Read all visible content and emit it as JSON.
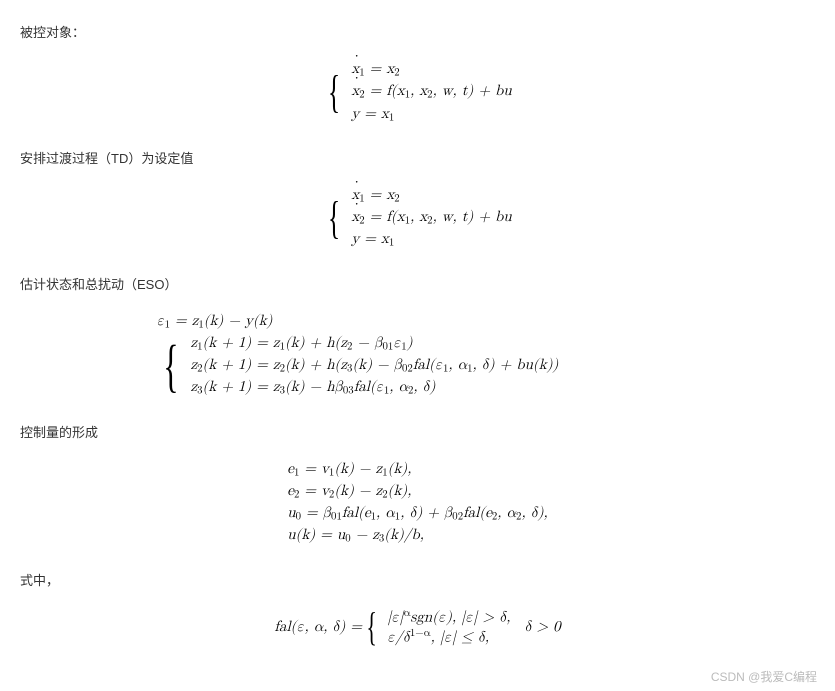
{
  "sections": {
    "s1": "被控对象：",
    "s2": "安排过渡过程（TD）为设定值",
    "s3": "估计状态和总扰动（ESO）",
    "s4": "控制量的形成",
    "s5": "式中，",
    "watermark": "CSDN @我爱C编程"
  },
  "eq1": {
    "l1a": "x",
    "l1b": "1",
    "l1c": " = x",
    "l1d": "2",
    "l2a": "x",
    "l2b": "2",
    "l2c": " = f(x",
    "l2d": "1",
    "l2e": ", x",
    "l2f": "2",
    "l2g": ", w, t) + bu",
    "l3a": "y = x",
    "l3b": "1"
  },
  "eq3": {
    "pre": "ε",
    "pre_s": "1",
    "pre2": " = z",
    "pre2_s": "1",
    "pre3": "(k) − y(k)",
    "l1": "z",
    "l1s": "1",
    "l1b": "(k + 1) = z",
    "l1c": "1",
    "l1d": "(k) + h(z",
    "l1e": "2",
    "l1f": " − β",
    "l1g": "01",
    "l1h": "ε",
    "l1i": "1",
    "l1j": ")",
    "l2": "z",
    "l2s": "2",
    "l2b": "(k + 1) = z",
    "l2c": "2",
    "l2d": "(k) + h(z",
    "l2e": "3",
    "l2f": "(k) − β",
    "l2g": "02",
    "l2h": "fal(ε",
    "l2i": "1",
    "l2j": ", α",
    "l2k": "1",
    "l2l": ", δ) + bu(k))",
    "l3": "z",
    "l3s": "3",
    "l3b": "(k + 1) = z",
    "l3c": "3",
    "l3d": "(k) − hβ",
    "l3e": "03",
    "l3f": "fal(ε",
    "l3g": "1",
    "l3h": ", α",
    "l3i": "2",
    "l3j": ", δ)"
  },
  "eq4": {
    "l1": "e",
    "l1s": "1",
    "l1b": " = v",
    "l1c": "1",
    "l1d": "(k) − z",
    "l1e": "1",
    "l1f": "(k),",
    "l2": "e",
    "l2s": "2",
    "l2b": " = v",
    "l2c": "2",
    "l2d": "(k) − z",
    "l2e": "2",
    "l2f": "(k),",
    "l3": "u",
    "l3s": "0",
    "l3b": " = β",
    "l3c": "01",
    "l3d": "fal(e",
    "l3e": "1",
    "l3f": ", α",
    "l3g": "1",
    "l3h": ", δ) + β",
    "l3i": "02",
    "l3j": "fal(e",
    "l3k": "2",
    "l3l": ", α",
    "l3m": "2",
    "l3n": ", δ),",
    "l4": "u(k) = u",
    "l4s": "0",
    "l4b": " − z",
    "l4c": "3",
    "l4d": "(k)/b,"
  },
  "eq5": {
    "lhs": "fal(ε, α, δ) = ",
    "l1": "|ε|",
    "l1sup": "α",
    "l1b": "sgn(ε), |ε| > δ,",
    "l2": "ε/δ",
    "l2sup": "1−α",
    "l2b": ", |ε| ≤ δ,",
    "rhs": "δ > 0"
  }
}
